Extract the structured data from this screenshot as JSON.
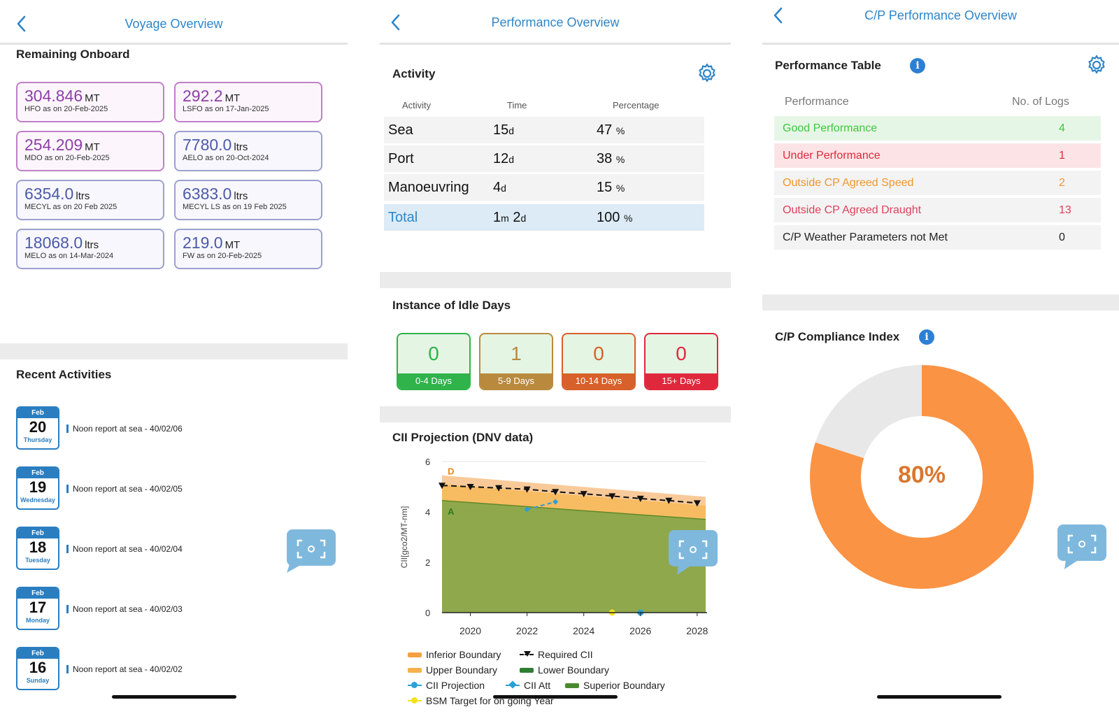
{
  "voyage": {
    "title": "Voyage Overview",
    "rob_heading": "Remaining Onboard",
    "rob": [
      {
        "value": "304.846",
        "unit": "MT",
        "sub": "HFO as on 20-Feb-2025",
        "style": "purple"
      },
      {
        "value": "292.2",
        "unit": "MT",
        "sub": "LSFO as on 17-Jan-2025",
        "style": "purple"
      },
      {
        "value": "254.209",
        "unit": "MT",
        "sub": "MDO as on 20-Feb-2025",
        "style": "purple"
      },
      {
        "value": "7780.0",
        "unit": "ltrs",
        "sub": "AELO as on 20-Oct-2024",
        "style": "blue"
      },
      {
        "value": "6354.0",
        "unit": "ltrs",
        "sub": "MECYL as on 20 Feb 2025",
        "style": "blue"
      },
      {
        "value": "6383.0",
        "unit": "ltrs",
        "sub": "MECYL LS as on 19 Feb 2025",
        "style": "blue"
      },
      {
        "value": "18068.0",
        "unit": "ltrs",
        "sub": "MELO as on 14-Mar-2024",
        "style": "blue"
      },
      {
        "value": "219.0",
        "unit": "MT",
        "sub": "FW as on 20-Feb-2025",
        "style": "blue"
      }
    ],
    "recent_heading": "Recent Activities",
    "activities": [
      {
        "month": "Feb",
        "day": "20",
        "weekday": "Thursday",
        "text": "Noon report at sea - 40/02/06"
      },
      {
        "month": "Feb",
        "day": "19",
        "weekday": "Wednesday",
        "text": "Noon report at sea - 40/02/05"
      },
      {
        "month": "Feb",
        "day": "18",
        "weekday": "Tuesday",
        "text": "Noon report at sea - 40/02/04"
      },
      {
        "month": "Feb",
        "day": "17",
        "weekday": "Monday",
        "text": "Noon report at sea - 40/02/03"
      },
      {
        "month": "Feb",
        "day": "16",
        "weekday": "Sunday",
        "text": "Noon report at sea - 40/02/02"
      }
    ]
  },
  "performance": {
    "title": "Performance Overview",
    "activity_heading": "Activity",
    "columns": [
      "Activity",
      "Time",
      "Percentage"
    ],
    "rows": [
      {
        "activity": "Sea",
        "time_num": "15",
        "time_unit": "d",
        "pct": "47",
        "pct_unit": "%"
      },
      {
        "activity": "Port",
        "time_num": "12",
        "time_unit": "d",
        "pct": "38",
        "pct_unit": "%"
      },
      {
        "activity": "Manoeuvring",
        "time_num": "4",
        "time_unit": "d",
        "pct": "15",
        "pct_unit": "%"
      }
    ],
    "total": {
      "label": "Total",
      "m": "1",
      "m_unit": "m",
      "d": "2",
      "d_unit": "d",
      "pct": "100",
      "pct_unit": "%"
    },
    "idle_heading": "Instance of Idle Days",
    "idle": [
      {
        "count": "0",
        "label": "0-4 Days",
        "color": "#2fb34a",
        "text_color": "#2fb34a"
      },
      {
        "count": "1",
        "label": "5-9 Days",
        "color": "#b98a3e",
        "text_color": "#b98a3e"
      },
      {
        "count": "0",
        "label": "10-14 Days",
        "color": "#d8602a",
        "text_color": "#d8602a"
      },
      {
        "count": "0",
        "label": "15+ Days",
        "color": "#e0283c",
        "text_color": "#e0283c"
      }
    ]
  },
  "chart_data": {
    "type": "area",
    "title": "CII Projection (DNV data)",
    "ylabel": "CII[gco2/MT-nm]",
    "xlim": [
      2019,
      2028.3
    ],
    "ylim": [
      0,
      6
    ],
    "xticks": [
      2020,
      2022,
      2024,
      2026,
      2028
    ],
    "yticks": [
      0,
      2,
      4,
      6
    ],
    "grade_labels": [
      {
        "text": "D",
        "x": 2019.2,
        "y": 5.6,
        "color": "#e58a1a"
      },
      {
        "text": "A",
        "x": 2019.2,
        "y": 4.0,
        "color": "#2e7d1a"
      }
    ],
    "series": [
      {
        "name": "Inferior Boundary",
        "color": "#f4b070",
        "x": [
          2019,
          2028.3
        ],
        "values": [
          5.45,
          4.6
        ]
      },
      {
        "name": "Upper Boundary",
        "color": "#f6b24a",
        "x": [
          2019,
          2028.3
        ],
        "values": [
          5.1,
          4.25
        ]
      },
      {
        "name": "Superior Boundary",
        "color": "#6a9f34",
        "x": [
          2019,
          2028.3
        ],
        "values": [
          4.45,
          3.7
        ]
      },
      {
        "name": "Lower Boundary",
        "color": "#2e7d32",
        "x": [
          2019,
          2028.3
        ],
        "values": [
          4.45,
          3.7
        ]
      },
      {
        "name": "Required CII",
        "color": "#111111",
        "x": [
          2019,
          2020,
          2021,
          2022,
          2023,
          2024,
          2025,
          2026,
          2027,
          2028
        ],
        "values": [
          5.05,
          5.0,
          4.95,
          4.9,
          4.8,
          4.72,
          4.63,
          4.53,
          4.45,
          4.35
        ]
      },
      {
        "name": "CII Att",
        "color": "#2a9fd8",
        "x": [
          2022,
          2023
        ],
        "values": [
          4.1,
          4.4
        ]
      },
      {
        "name": "CII Projection",
        "color": "#2a9fd8",
        "x": [
          2026
        ],
        "values": [
          0
        ]
      },
      {
        "name": "BSM Target for on going Year",
        "color": "#f2e11d",
        "x": [
          2025
        ],
        "values": [
          0
        ]
      }
    ],
    "legend": [
      "Inferior Boundary",
      "Required CII",
      "Upper Boundary",
      "Lower Boundary",
      "CII Projection",
      "CII Att",
      "Superior Boundary",
      "BSM Target for on going Year"
    ]
  },
  "cp": {
    "title": "C/P Performance Overview",
    "table_heading": "Performance Table",
    "col_perf": "Performance",
    "col_logs": "No. of Logs",
    "rows": [
      {
        "label": "Good Performance",
        "count": "4",
        "color": "#3ec83e",
        "bg": "#e6f6e6"
      },
      {
        "label": "Under Performance",
        "count": "1",
        "color": "#e0283c",
        "bg": "#fce4e6"
      },
      {
        "label": "Outside CP Agreed Speed",
        "count": "2",
        "color": "#f0962a",
        "bg": "#f3f3f3"
      },
      {
        "label": "Outside CP Agreed Draught",
        "count": "13",
        "color": "#e0405c",
        "bg": "#f3f3f3"
      },
      {
        "label": "C/P Weather Parameters not Met",
        "count": "0",
        "color": "#222222",
        "bg": "#f3f3f3"
      }
    ],
    "compliance_heading": "C/P Compliance Index",
    "compliance_value": 80,
    "compliance_label": "80%",
    "donut_color": "#fb9344",
    "donut_rest": "#e8e8e8"
  }
}
